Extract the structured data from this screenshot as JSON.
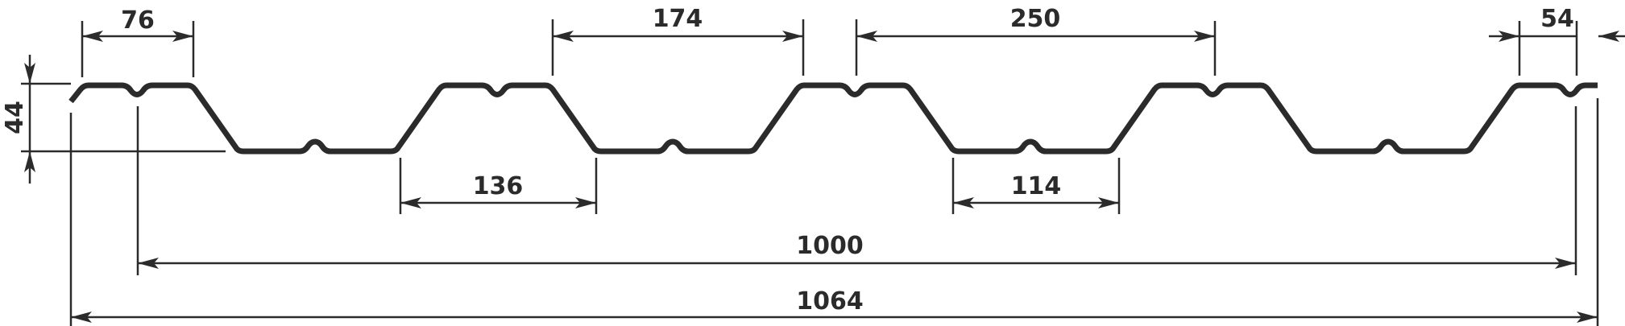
{
  "drawing": {
    "stroke_color": "#2b2b2b",
    "background_color": "#ffffff",
    "dimensions": {
      "d76": "76",
      "d174": "174",
      "d250": "250",
      "d54": "54",
      "d44": "44",
      "d136": "136",
      "d114": "114",
      "d1000": "1000",
      "d1064": "1064"
    }
  }
}
